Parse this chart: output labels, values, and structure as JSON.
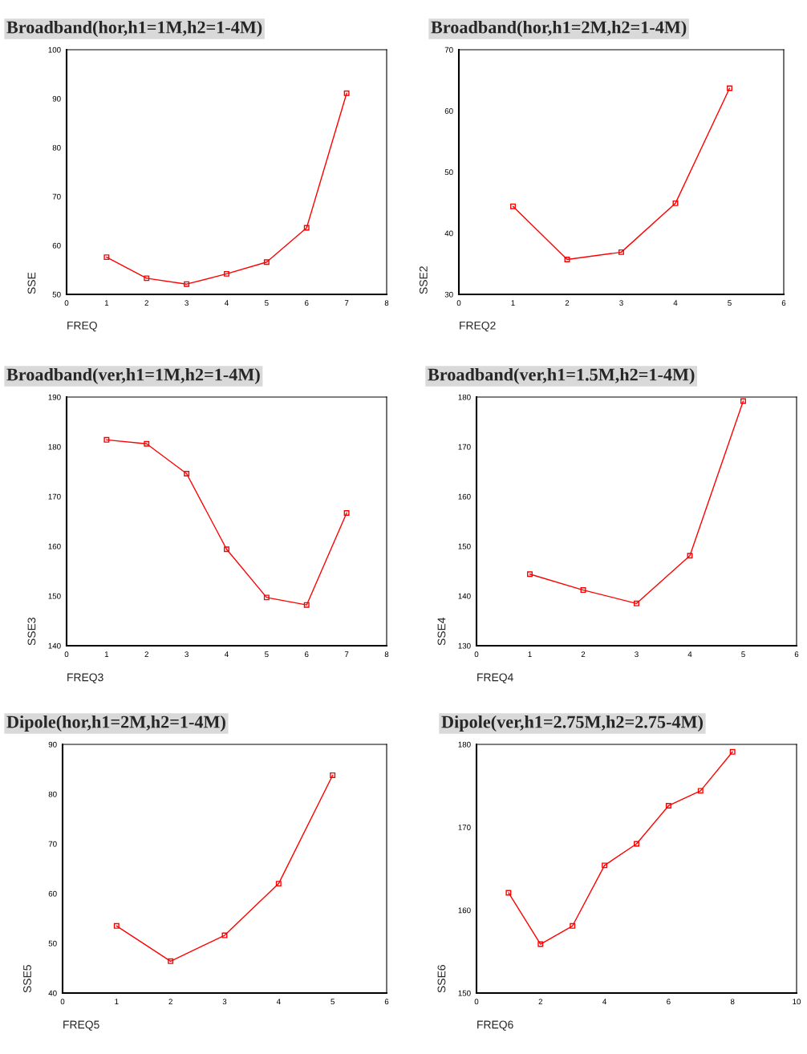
{
  "chart_data": [
    {
      "type": "line",
      "title": "Broadband(hor,h1=1M,h2=1-4M)",
      "xlabel": "FREQ",
      "ylabel": "SSE",
      "x": [
        1,
        2,
        3,
        4,
        5,
        6,
        7
      ],
      "marker": "square",
      "line_style": "solid",
      "series": [
        {
          "color": "#ff0000",
          "values": [
            57.6,
            53.3,
            52.1,
            54.2,
            56.6,
            63.6,
            91.1
          ]
        }
      ],
      "xlim": [
        0,
        8
      ],
      "xticks": [
        0,
        1,
        2,
        3,
        4,
        5,
        6,
        7,
        8
      ],
      "ylim": [
        50,
        100
      ],
      "yticks": [
        50,
        60,
        70,
        80,
        90,
        100
      ]
    },
    {
      "type": "line",
      "title": "Broadband(hor,h1=2M,h2=1-4M)",
      "xlabel": "FREQ2",
      "ylabel": "SSE2",
      "x": [
        1,
        2,
        3,
        4,
        5
      ],
      "marker": "square",
      "line_style": "solid",
      "series": [
        {
          "color": "#ff0000",
          "values": [
            44.4,
            35.7,
            36.9,
            44.9,
            63.7
          ]
        }
      ],
      "xlim": [
        0,
        6
      ],
      "xticks": [
        0,
        1,
        2,
        3,
        4,
        5,
        6
      ],
      "ylim": [
        30,
        70
      ],
      "yticks": [
        30,
        40,
        50,
        60,
        70
      ]
    },
    {
      "type": "line",
      "title": "Broadband(ver,h1=1M,h2=1-4M)",
      "xlabel": "FREQ3",
      "ylabel": "SSE3",
      "x": [
        1,
        2,
        3,
        4,
        5,
        6,
        7
      ],
      "marker": "square",
      "line_style": "solid",
      "series": [
        {
          "color": "#ff0000",
          "values": [
            181.4,
            180.6,
            174.6,
            159.4,
            149.7,
            148.2,
            166.7
          ]
        }
      ],
      "xlim": [
        0,
        8
      ],
      "xticks": [
        0,
        1,
        2,
        3,
        4,
        5,
        6,
        7,
        8
      ],
      "ylim": [
        140,
        190
      ],
      "yticks": [
        140,
        150,
        160,
        170,
        180,
        190
      ]
    },
    {
      "type": "line",
      "title": "Broadband(ver,h1=1.5M,h2=1-4M)",
      "xlabel": "FREQ4",
      "ylabel": "SSE4",
      "x": [
        1,
        2,
        3,
        4,
        5
      ],
      "marker": "square",
      "line_style": "solid",
      "series": [
        {
          "color": "#ff0000",
          "values": [
            144.4,
            141.2,
            138.5,
            148.1,
            179.2
          ]
        }
      ],
      "xlim": [
        0,
        6
      ],
      "xticks": [
        0,
        1,
        2,
        3,
        4,
        5,
        6
      ],
      "ylim": [
        130,
        180
      ],
      "yticks": [
        130,
        140,
        150,
        160,
        170,
        180
      ]
    },
    {
      "type": "line",
      "title": "Dipole(hor,h1=2M,h2=1-4M)",
      "xlabel": "FREQ5",
      "ylabel": "SSE5",
      "x": [
        1,
        2,
        3,
        4,
        5
      ],
      "marker": "square",
      "line_style": "solid",
      "series": [
        {
          "color": "#ff0000",
          "values": [
            53.5,
            46.4,
            51.6,
            62.0,
            83.8
          ]
        }
      ],
      "xlim": [
        0,
        6
      ],
      "xticks": [
        0,
        1,
        2,
        3,
        4,
        5,
        6
      ],
      "ylim": [
        40,
        90
      ],
      "yticks": [
        40,
        50,
        60,
        70,
        80,
        90
      ]
    },
    {
      "type": "line",
      "title": "Dipole(ver,h1=2.75M,h2=2.75-4M)",
      "xlabel": "FREQ6",
      "ylabel": "SSE6",
      "x": [
        1,
        2,
        3,
        4,
        5,
        6,
        7,
        8
      ],
      "marker": "square",
      "line_style": "solid",
      "series": [
        {
          "color": "#ff0000",
          "values": [
            162.1,
            155.9,
            158.1,
            165.4,
            168.0,
            172.6,
            174.4,
            179.1
          ]
        }
      ],
      "xlim": [
        0,
        10
      ],
      "xticks": [
        0,
        2,
        4,
        6,
        8,
        10
      ],
      "ylim": [
        150,
        180
      ],
      "yticks": [
        150,
        160,
        170,
        180
      ]
    }
  ]
}
